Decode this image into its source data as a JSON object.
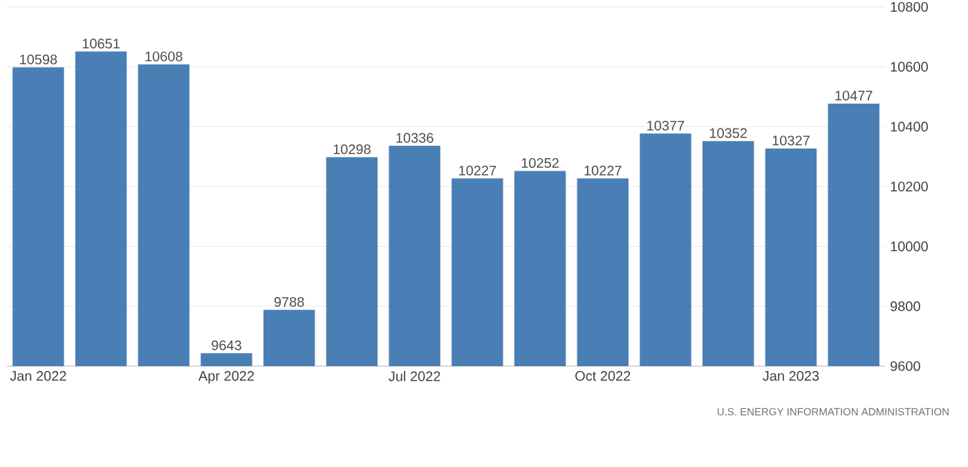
{
  "chart_data": {
    "type": "bar",
    "categories": [
      "Jan 2022",
      null,
      null,
      "Apr 2022",
      null,
      null,
      "Jul 2022",
      null,
      null,
      "Oct 2022",
      null,
      null,
      "Jan 2023",
      null
    ],
    "values": [
      10598,
      10651,
      10608,
      9643,
      9788,
      10298,
      10336,
      10227,
      10252,
      10227,
      10377,
      10352,
      10327,
      10477
    ],
    "color": "#4a7fb5",
    "ylim": [
      9600,
      10800
    ],
    "yticks": [
      9600,
      9800,
      10000,
      10200,
      10400,
      10600,
      10800
    ],
    "grid": "y",
    "data_labels": true,
    "annotations": [
      "U.S. ENERGY INFORMATION ADMINISTRATION"
    ]
  }
}
